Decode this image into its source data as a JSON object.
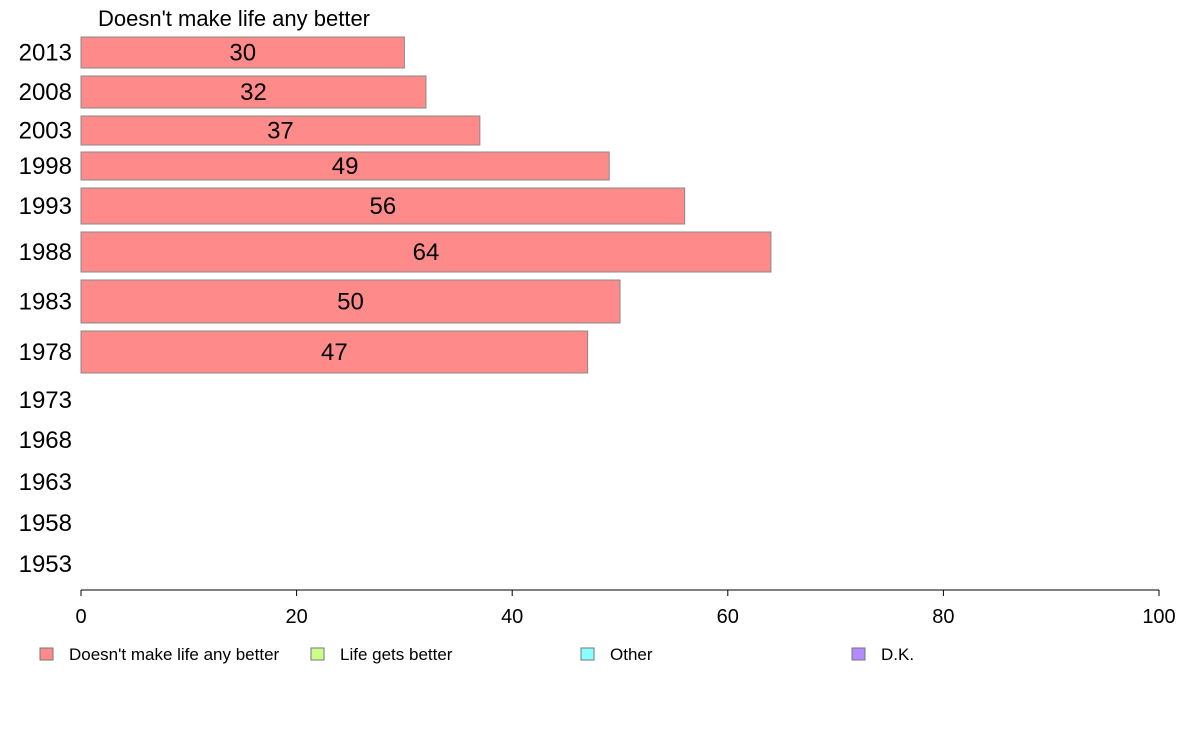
{
  "chart_data": {
    "type": "bar",
    "orientation": "horizontal",
    "title": "Doesn't make life any better",
    "categories": [
      "2013",
      "2008",
      "2003",
      "1998",
      "1993",
      "1988",
      "1983",
      "1978",
      "1973",
      "1968",
      "1963",
      "1958",
      "1953"
    ],
    "series": [
      {
        "name": "Doesn't make life any better",
        "color": "#ff8a8a",
        "values": [
          30,
          32,
          37,
          49,
          56,
          64,
          50,
          47,
          null,
          null,
          null,
          null,
          null
        ],
        "display_labels": [
          "30",
          "32",
          "37",
          "49",
          "56",
          "64",
          "50",
          "47"
        ]
      }
    ],
    "xlim": [
      0,
      100
    ],
    "xticks": [
      0,
      20,
      40,
      60,
      80,
      100
    ],
    "grid": false,
    "legend_position": "bottom",
    "legend": [
      {
        "label": "Doesn't make life any better",
        "color": "#ff8a8a"
      },
      {
        "label": "Life gets better",
        "color": "#ccff8a"
      },
      {
        "label": "Other",
        "color": "#8affff"
      },
      {
        "label": "D.K.",
        "color": "#b48aff"
      }
    ]
  }
}
